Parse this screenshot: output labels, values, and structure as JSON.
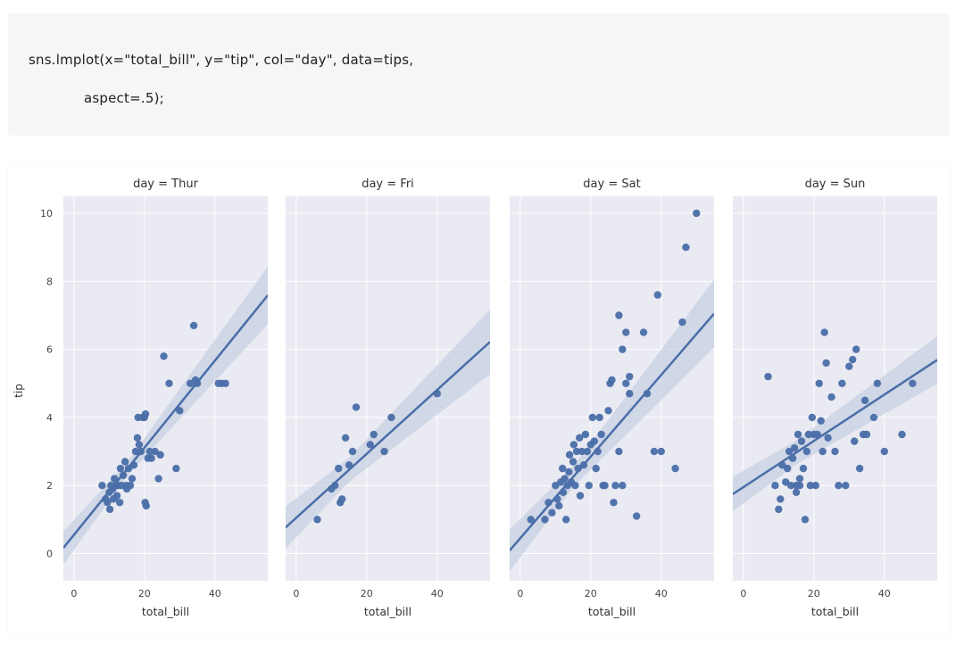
{
  "code": {
    "line1": "sns.lmplot(x=\"total_bill\", y=\"tip\", col=\"day\", data=tips,",
    "line2": "aspect=.5);"
  },
  "chart_data": {
    "type": "scatter",
    "xlabel": "total_bill",
    "ylabel": "tip",
    "xlim": [
      -3,
      55
    ],
    "ylim": [
      -0.8,
      10.5
    ],
    "xticks": [
      "0",
      "20",
      "40"
    ],
    "yticks": [
      "0",
      "2",
      "4",
      "6",
      "8",
      "10"
    ],
    "grid": true,
    "colors": {
      "points": "#4a6ea8",
      "line": "#4a6ea8",
      "band": "#c7d0e2",
      "panel_bg": "#eaeaf2",
      "grid": "#ffffff"
    },
    "panels": [
      {
        "title": "day = Thur",
        "regression": {
          "intercept": 0.55,
          "slope": 0.128
        },
        "band_halfwidth": {
          "near": 0.2,
          "far": 0.85
        },
        "points": [
          [
            8,
            2.0
          ],
          [
            9,
            1.6
          ],
          [
            9.5,
            1.5
          ],
          [
            10,
            1.8
          ],
          [
            10.2,
            1.3
          ],
          [
            10.5,
            2.0
          ],
          [
            11,
            1.9
          ],
          [
            11.2,
            1.6
          ],
          [
            11.5,
            2.2
          ],
          [
            12,
            2.0
          ],
          [
            12.2,
            1.7
          ],
          [
            12.5,
            2.0
          ],
          [
            13,
            1.5
          ],
          [
            13.2,
            2.5
          ],
          [
            13.5,
            2.0
          ],
          [
            14,
            2.3
          ],
          [
            14.5,
            2.7
          ],
          [
            14.8,
            2.0
          ],
          [
            15,
            1.9
          ],
          [
            15.5,
            2.5
          ],
          [
            16,
            2.0
          ],
          [
            16.5,
            2.2
          ],
          [
            17,
            2.6
          ],
          [
            17.5,
            3.0
          ],
          [
            18,
            3.4
          ],
          [
            18.2,
            4.0
          ],
          [
            18.5,
            3.2
          ],
          [
            19,
            3.0
          ],
          [
            19.5,
            4.0
          ],
          [
            20,
            4.0
          ],
          [
            20.3,
            4.1
          ],
          [
            20.5,
            1.4
          ],
          [
            20.2,
            1.5
          ],
          [
            21,
            2.8
          ],
          [
            21.5,
            3.0
          ],
          [
            22,
            2.8
          ],
          [
            23,
            3.0
          ],
          [
            24,
            2.2
          ],
          [
            24.5,
            2.9
          ],
          [
            25.5,
            5.8
          ],
          [
            27,
            5.0
          ],
          [
            29,
            2.5
          ],
          [
            30,
            4.2
          ],
          [
            33,
            5.0
          ],
          [
            34,
            6.7
          ],
          [
            34.5,
            5.1
          ],
          [
            35,
            5.0
          ],
          [
            41,
            5.0
          ],
          [
            42,
            5.0
          ],
          [
            43,
            5.0
          ]
        ]
      },
      {
        "title": "day = Fri",
        "regression": {
          "intercept": 1.05,
          "slope": 0.094
        },
        "band_halfwidth": {
          "near": 0.35,
          "far": 0.95
        },
        "points": [
          [
            6,
            1.0
          ],
          [
            10,
            1.9
          ],
          [
            11,
            2.0
          ],
          [
            12,
            2.5
          ],
          [
            12.5,
            1.5
          ],
          [
            13,
            1.6
          ],
          [
            14,
            3.4
          ],
          [
            15,
            2.6
          ],
          [
            16,
            3.0
          ],
          [
            17,
            4.3
          ],
          [
            21,
            3.2
          ],
          [
            22,
            3.5
          ],
          [
            25,
            3.0
          ],
          [
            27,
            4.0
          ],
          [
            40,
            4.7
          ]
        ]
      },
      {
        "title": "day = Sat",
        "regression": {
          "intercept": 0.45,
          "slope": 0.12
        },
        "band_halfwidth": {
          "near": 0.3,
          "far": 1.0
        },
        "points": [
          [
            3,
            1.0
          ],
          [
            7,
            1.0
          ],
          [
            8,
            1.5
          ],
          [
            9,
            1.2
          ],
          [
            10,
            2.0
          ],
          [
            10.5,
            1.6
          ],
          [
            11,
            1.4
          ],
          [
            11.5,
            2.1
          ],
          [
            12,
            2.5
          ],
          [
            12.2,
            1.8
          ],
          [
            12.6,
            2.2
          ],
          [
            13,
            1.0
          ],
          [
            13.4,
            2.0
          ],
          [
            13.8,
            2.4
          ],
          [
            14,
            2.9
          ],
          [
            14.5,
            2.1
          ],
          [
            15,
            2.7
          ],
          [
            15.2,
            3.2
          ],
          [
            15.6,
            2.0
          ],
          [
            16,
            3.0
          ],
          [
            16.4,
            2.5
          ],
          [
            16.8,
            3.4
          ],
          [
            17,
            1.7
          ],
          [
            17.5,
            3.0
          ],
          [
            18,
            2.6
          ],
          [
            18.5,
            3.5
          ],
          [
            19,
            3.0
          ],
          [
            19.5,
            2.0
          ],
          [
            20,
            3.2
          ],
          [
            20.5,
            4.0
          ],
          [
            21,
            3.3
          ],
          [
            21.5,
            2.5
          ],
          [
            22,
            3.0
          ],
          [
            22.5,
            4.0
          ],
          [
            23,
            3.5
          ],
          [
            23.5,
            2.0
          ],
          [
            24,
            2.0
          ],
          [
            25,
            4.2
          ],
          [
            25.5,
            5.0
          ],
          [
            26,
            5.1
          ],
          [
            26.5,
            1.5
          ],
          [
            27,
            2.0
          ],
          [
            28,
            3.0
          ],
          [
            29,
            2.0
          ],
          [
            30,
            5.0
          ],
          [
            31,
            4.7
          ],
          [
            33,
            1.1
          ],
          [
            35,
            6.5
          ],
          [
            36,
            4.7
          ],
          [
            38,
            3.0
          ],
          [
            39,
            7.6
          ],
          [
            40,
            3.0
          ],
          [
            44,
            2.5
          ],
          [
            46,
            6.8
          ],
          [
            47,
            9.0
          ],
          [
            50,
            10.0
          ],
          [
            28,
            7.0
          ],
          [
            29,
            6.0
          ],
          [
            30,
            6.5
          ],
          [
            31,
            5.2
          ]
        ]
      },
      {
        "title": "day = Sun",
        "regression": {
          "intercept": 1.95,
          "slope": 0.068
        },
        "band_halfwidth": {
          "near": 0.35,
          "far": 0.7
        },
        "points": [
          [
            7,
            5.2
          ],
          [
            9,
            2.0
          ],
          [
            10,
            1.3
          ],
          [
            10.5,
            1.6
          ],
          [
            11,
            2.6
          ],
          [
            12,
            2.1
          ],
          [
            12.5,
            2.5
          ],
          [
            13,
            3.0
          ],
          [
            13.5,
            2.0
          ],
          [
            14,
            2.8
          ],
          [
            14.5,
            3.1
          ],
          [
            15,
            2.0
          ],
          [
            15.5,
            3.5
          ],
          [
            16,
            2.0
          ],
          [
            16.5,
            3.3
          ],
          [
            17,
            2.5
          ],
          [
            17.5,
            1.0
          ],
          [
            18,
            3.0
          ],
          [
            18.5,
            3.5
          ],
          [
            19,
            2.0
          ],
          [
            19.5,
            4.0
          ],
          [
            20,
            3.5
          ],
          [
            20.5,
            2.0
          ],
          [
            21,
            3.5
          ],
          [
            21.5,
            5.0
          ],
          [
            22,
            3.9
          ],
          [
            22.5,
            3.0
          ],
          [
            23,
            6.5
          ],
          [
            23.5,
            5.6
          ],
          [
            24,
            3.4
          ],
          [
            25,
            4.6
          ],
          [
            26,
            3.0
          ],
          [
            27,
            2.0
          ],
          [
            28,
            5.0
          ],
          [
            29,
            2.0
          ],
          [
            30,
            5.5
          ],
          [
            31,
            5.7
          ],
          [
            31.5,
            3.3
          ],
          [
            32,
            6.0
          ],
          [
            33,
            2.5
          ],
          [
            34,
            3.5
          ],
          [
            34.5,
            4.5
          ],
          [
            35,
            3.5
          ],
          [
            37,
            4.0
          ],
          [
            38,
            5.0
          ],
          [
            40,
            3.0
          ],
          [
            45,
            3.5
          ],
          [
            48,
            5.0
          ],
          [
            15,
            1.8
          ],
          [
            16,
            2.2
          ]
        ]
      }
    ]
  }
}
